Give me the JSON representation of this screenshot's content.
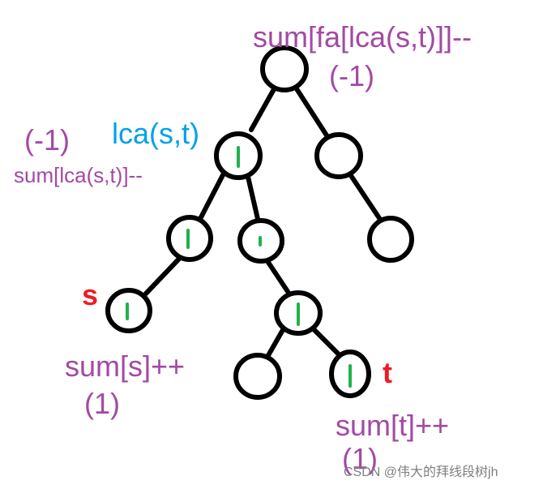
{
  "annotations": {
    "root_sum": "sum[fa[lca(s,t)]]--",
    "root_delta": "(-1)",
    "lca_label": "lca(s,t)",
    "lca_delta": "(-1)",
    "lca_sum": "sum[lca(s,t)]--",
    "s_label": "s",
    "s_sum": "sum[s]++",
    "s_delta": "(1)",
    "t_label": "t",
    "t_sum": "sum[t]++",
    "t_delta": "(1)"
  },
  "watermark": "CSDN @伟大的拜线段树jh",
  "colors": {
    "annotation": "#a349a4",
    "lca": "#00a2e8",
    "endpoint": "#ed1c24",
    "path_mark": "#22b14c",
    "node_stroke": "#000000"
  }
}
